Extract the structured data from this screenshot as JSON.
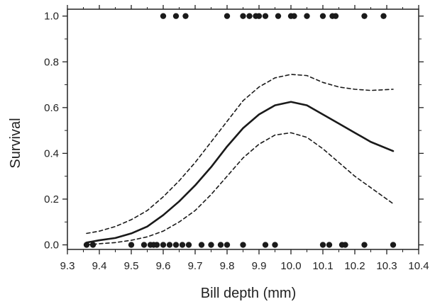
{
  "chart_data": {
    "type": "scatter",
    "title": "",
    "xlabel": "Bill depth (mm)",
    "ylabel": "Survival",
    "xlim": [
      9.3,
      10.4
    ],
    "ylim": [
      -0.02,
      1.03
    ],
    "xticks": [
      "9.3",
      "9.4",
      "9.5",
      "9.6",
      "9.7",
      "9.8",
      "9.9",
      "10.0",
      "10.1",
      "10.2",
      "10.3",
      "10.4"
    ],
    "yticks": [
      "0.0",
      "0.2",
      "0.4",
      "0.6",
      "0.8",
      "1.0"
    ],
    "grid": false,
    "legend": "none",
    "series": [
      {
        "kind": "points",
        "x": [
          9.6,
          9.64,
          9.67,
          9.8,
          9.85,
          9.87,
          9.89,
          9.9,
          9.92,
          9.96,
          10.0,
          10.01,
          10.05,
          10.1,
          10.13,
          10.14,
          10.23,
          10.29
        ],
        "y": [
          1,
          1,
          1,
          1,
          1,
          1,
          1,
          1,
          1,
          1,
          1,
          1,
          1,
          1,
          1,
          1,
          1,
          1
        ]
      },
      {
        "kind": "points",
        "x": [
          9.36,
          9.38,
          9.5,
          9.54,
          9.56,
          9.57,
          9.58,
          9.6,
          9.62,
          9.64,
          9.66,
          9.68,
          9.72,
          9.75,
          9.78,
          9.8,
          9.85,
          9.92,
          9.95,
          10.1,
          10.12,
          10.16,
          10.17,
          10.23,
          10.32
        ],
        "y": [
          0,
          0,
          0,
          0,
          0,
          0,
          0,
          0,
          0,
          0,
          0,
          0,
          0,
          0,
          0,
          0,
          0,
          0,
          0,
          0,
          0,
          0,
          0,
          0,
          0
        ]
      },
      {
        "kind": "fitted",
        "style": "solid",
        "x": [
          9.36,
          9.4,
          9.45,
          9.5,
          9.55,
          9.6,
          9.65,
          9.7,
          9.75,
          9.8,
          9.85,
          9.9,
          9.95,
          10.0,
          10.05,
          10.1,
          10.15,
          10.2,
          10.25,
          10.32
        ],
        "y": [
          0.01,
          0.02,
          0.03,
          0.05,
          0.08,
          0.13,
          0.19,
          0.26,
          0.34,
          0.43,
          0.51,
          0.57,
          0.61,
          0.625,
          0.61,
          0.57,
          0.53,
          0.49,
          0.45,
          0.41
        ]
      },
      {
        "kind": "upper_ci",
        "style": "dashed",
        "x": [
          9.36,
          9.4,
          9.45,
          9.5,
          9.55,
          9.6,
          9.65,
          9.7,
          9.75,
          9.8,
          9.85,
          9.9,
          9.95,
          10.0,
          10.05,
          10.1,
          10.15,
          10.2,
          10.25,
          10.32
        ],
        "y": [
          0.05,
          0.06,
          0.08,
          0.11,
          0.15,
          0.21,
          0.28,
          0.36,
          0.45,
          0.54,
          0.63,
          0.69,
          0.73,
          0.745,
          0.74,
          0.71,
          0.69,
          0.68,
          0.675,
          0.68
        ]
      },
      {
        "kind": "lower_ci",
        "style": "dashed",
        "x": [
          9.36,
          9.4,
          9.45,
          9.5,
          9.55,
          9.6,
          9.65,
          9.7,
          9.75,
          9.8,
          9.85,
          9.9,
          9.95,
          10.0,
          10.05,
          10.1,
          10.15,
          10.2,
          10.25,
          10.32
        ],
        "y": [
          0.0,
          0.005,
          0.01,
          0.02,
          0.035,
          0.06,
          0.1,
          0.15,
          0.22,
          0.3,
          0.38,
          0.44,
          0.48,
          0.49,
          0.47,
          0.42,
          0.36,
          0.3,
          0.25,
          0.18
        ]
      }
    ]
  }
}
